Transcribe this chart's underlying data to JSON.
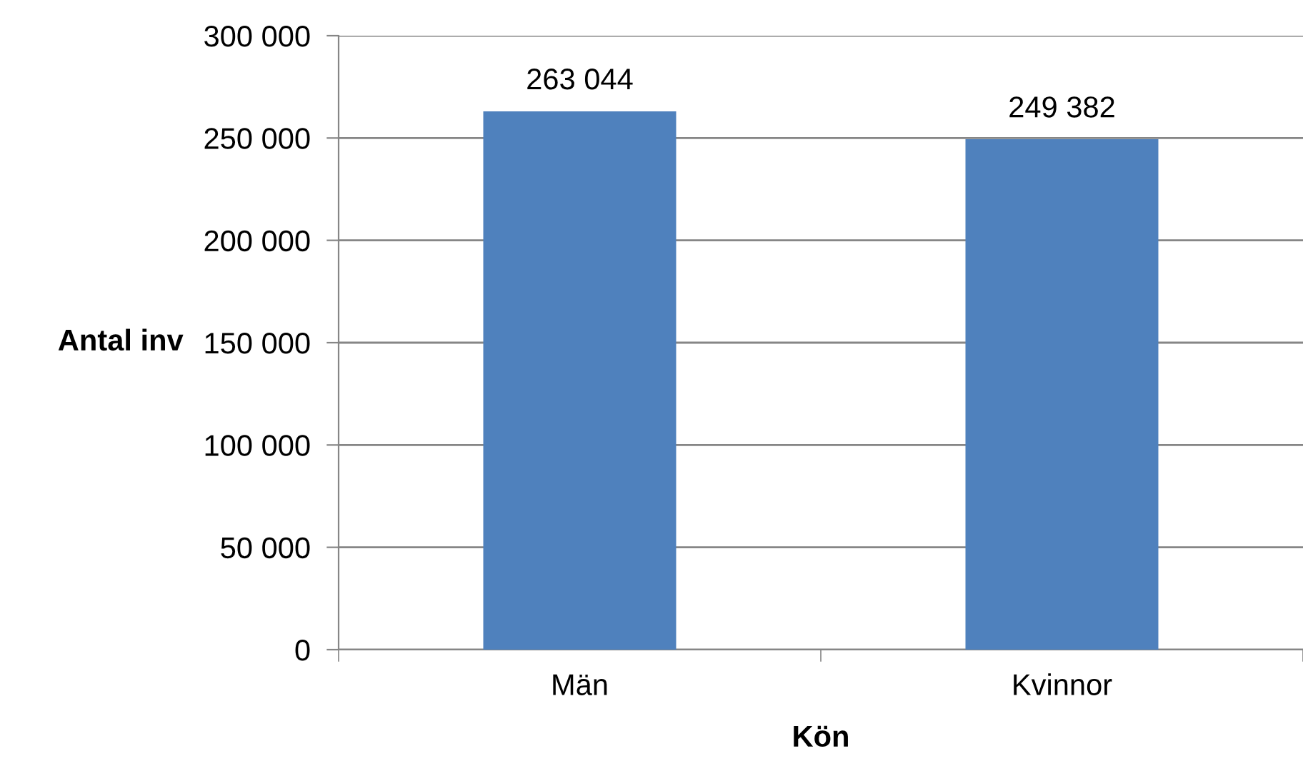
{
  "chart_data": {
    "type": "bar",
    "xlabel": "Kön",
    "ylabel": "Antal inv",
    "categories": [
      "Män",
      "Kvinnor"
    ],
    "values": [
      263044,
      249382
    ],
    "color": "#4f81bd",
    "value_labels": [
      "263 044",
      "249 382"
    ],
    "ylim": [
      0,
      300000
    ],
    "yticks": [
      {
        "value": 0,
        "label": "0"
      },
      {
        "value": 50000,
        "label": "50 000"
      },
      {
        "value": 100000,
        "label": "100 000"
      },
      {
        "value": 150000,
        "label": "150 000"
      },
      {
        "value": 200000,
        "label": "200 000"
      },
      {
        "value": 250000,
        "label": "250 000"
      },
      {
        "value": 300000,
        "label": "300 000"
      }
    ],
    "grid": "y",
    "legend": false
  }
}
